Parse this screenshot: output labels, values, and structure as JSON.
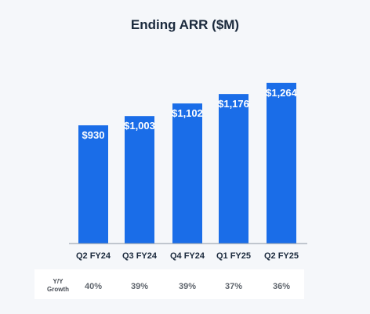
{
  "chart_data": {
    "type": "bar",
    "title": "Ending ARR ($M)",
    "categories": [
      "Q2 FY24",
      "Q3 FY24",
      "Q4 FY24",
      "Q1 FY25",
      "Q2 FY25"
    ],
    "values": [
      930,
      1003,
      1102,
      1176,
      1264
    ],
    "value_labels": [
      "$930",
      "$1,003",
      "$1,102",
      "$1,176",
      "$1,264"
    ],
    "ylim": [
      0,
      1300
    ],
    "grid": false,
    "bar_color": "#1a6de8",
    "yy_growth": {
      "label_line1": "Y/Y",
      "label_line2": "Growth",
      "values": [
        "40%",
        "39%",
        "39%",
        "37%",
        "36%"
      ]
    }
  }
}
